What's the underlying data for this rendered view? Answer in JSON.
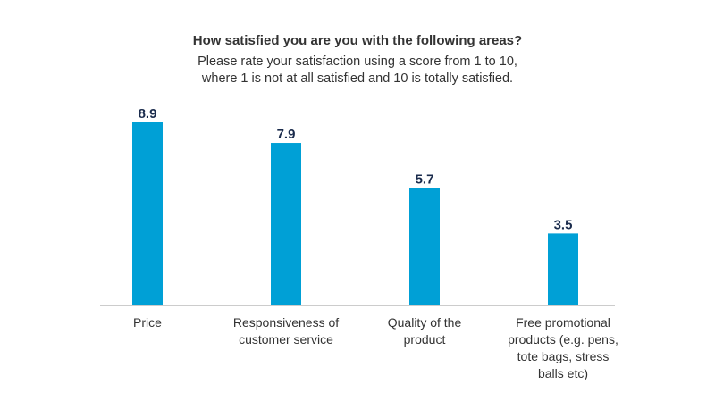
{
  "chart_data": {
    "type": "bar",
    "title": "How satisfied you are you with the following areas?",
    "subtitle_lines": [
      "Please rate your satisfaction using a score from 1 to 10,",
      "where 1 is not at all satisfied and 10 is totally satisfied."
    ],
    "categories": [
      [
        "Price"
      ],
      [
        "Responsiveness of",
        "customer service"
      ],
      [
        "Quality of the",
        "product"
      ],
      [
        "Free promotional",
        "products (e.g. pens,",
        "tote bags, stress",
        "balls etc)"
      ]
    ],
    "values": [
      8.9,
      7.9,
      5.7,
      3.5
    ],
    "value_labels": [
      "8.9",
      "7.9",
      "5.7",
      "3.5"
    ],
    "xlabel": "",
    "ylabel": "",
    "ylim": [
      0,
      9
    ],
    "grid": false,
    "legend": "none",
    "bar_color": "#00a0d6",
    "axis_color": "#cccccc",
    "label_color": "#1a2b4c",
    "text_color": "#333333"
  }
}
